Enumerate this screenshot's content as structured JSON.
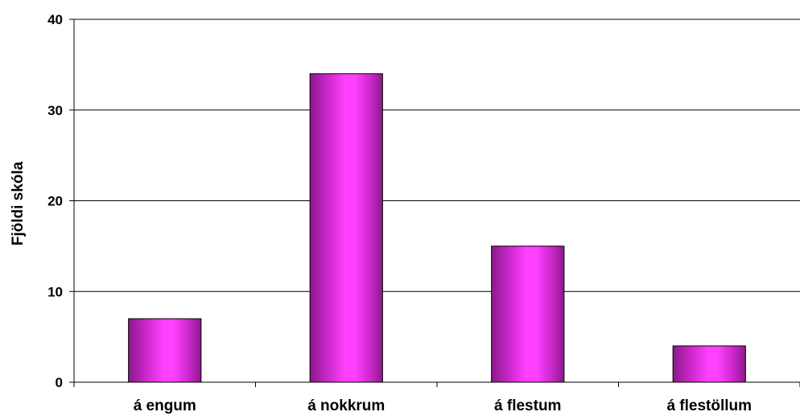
{
  "chart_data": {
    "type": "bar",
    "title": "",
    "xlabel": "",
    "ylabel": "Fjöldi skóla",
    "categories": [
      "á engum",
      "á nokkrum",
      "á flestum",
      "á flestöllum"
    ],
    "values": [
      7,
      34,
      15,
      4
    ],
    "ylim": [
      0,
      40
    ],
    "yticks": [
      0,
      10,
      20,
      30,
      40
    ],
    "grid": true,
    "legend": "none",
    "bar_color": "#ff33ff",
    "bar_edge_color": "#8a1a8a"
  }
}
